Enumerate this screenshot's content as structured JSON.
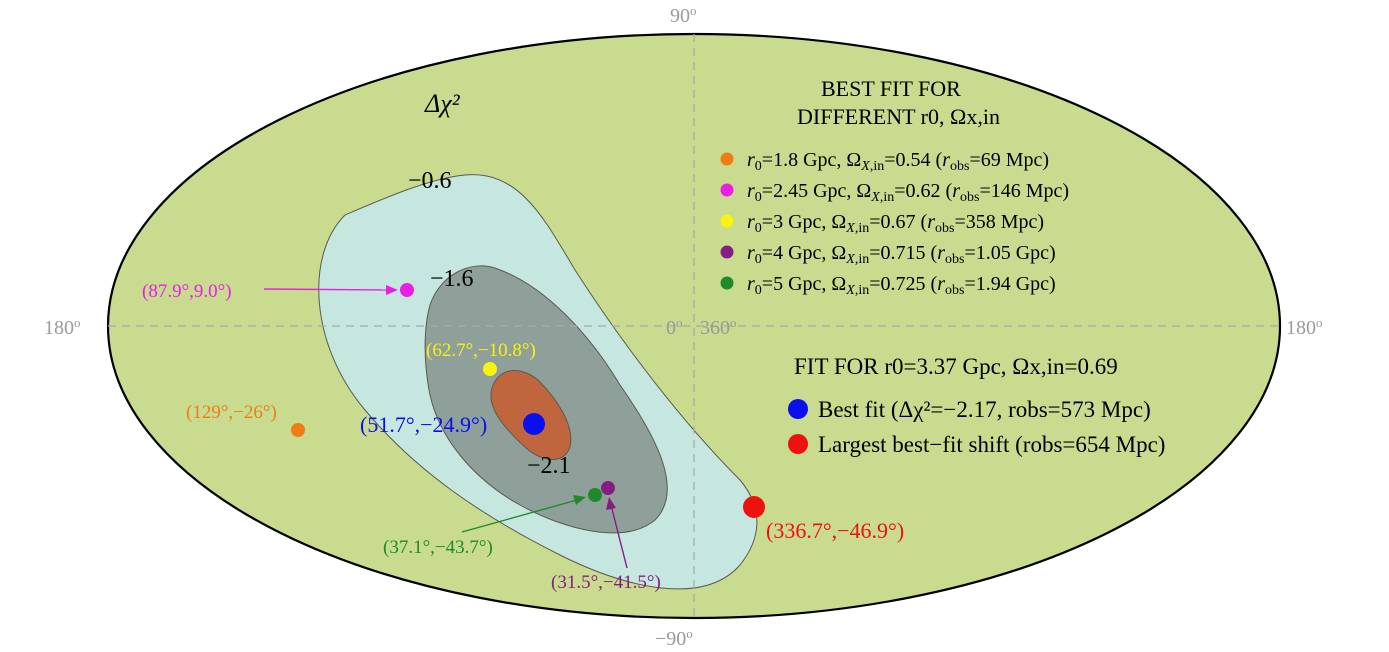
{
  "chart_data": {
    "type": "scatter",
    "projection": "mollweide",
    "title": "",
    "colorbar_label": "Δχ²",
    "axis_labels": {
      "top": "90",
      "bottom": "−90",
      "left": "180",
      "right": "180",
      "center_left": "0",
      "center_right": "360",
      "degree_mark": "o"
    },
    "contour_labels": [
      "−0.6",
      "−1.6",
      "−2.1"
    ],
    "colors": {
      "background": "#c8db8f",
      "contour_outer": "#c6e6e0",
      "contour_mid": "#8fa09a",
      "contour_inner": "#c0663e",
      "grid": "#aaaaaa"
    },
    "legend_top": {
      "title_line1": "BEST FIT FOR",
      "title_line2": "DIFFERENT r0, Ωx,in",
      "entries": [
        {
          "color": "#f07c14",
          "r0": "1.8 Gpc",
          "omega": "0.54",
          "robs": "69 Mpc"
        },
        {
          "color": "#ea1fe6",
          "r0": "2.45 Gpc",
          "omega": "0.62",
          "robs": "146 Mpc"
        },
        {
          "color": "#fbf210",
          "r0": "3 Gpc",
          "omega": "0.67",
          "robs": "358 Mpc"
        },
        {
          "color": "#861d85",
          "r0": "4 Gpc",
          "omega": "0.715",
          "robs": "1.05 Gpc"
        },
        {
          "color": "#1f8a2c",
          "r0": "5 Gpc",
          "omega": "0.725",
          "robs": "1.94 Gpc"
        }
      ]
    },
    "legend_bottom": {
      "title": "FIT FOR r0=3.37 Gpc, Ωx,in=0.69",
      "entries": [
        {
          "color": "#0a0ff0",
          "label": "Best fit (Δχ²=−2.17, robs=573 Mpc)"
        },
        {
          "color": "#ef1010",
          "label": "Largest best−fit shift (robs=654 Mpc)"
        }
      ]
    },
    "points": [
      {
        "label": "(87.9°,9.0°)",
        "lon": 87.9,
        "lat": 9.0,
        "color": "#ea1fe6",
        "size": "small"
      },
      {
        "label": "(62.7°,−10.8°)",
        "lon": 62.7,
        "lat": -10.8,
        "color": "#fbf210",
        "size": "small"
      },
      {
        "label": "(129°,−26°)",
        "lon": 129,
        "lat": -26,
        "color": "#f07c14",
        "size": "small"
      },
      {
        "label": "(51.7°,−24.9°)",
        "lon": 51.7,
        "lat": -24.9,
        "color": "#0a0ff0",
        "size": "large"
      },
      {
        "label": "(37.1°,−43.7°)",
        "lon": 37.1,
        "lat": -43.7,
        "color": "#1f8a2c",
        "size": "small"
      },
      {
        "label": "(31.5°,−41.5°)",
        "lon": 31.5,
        "lat": -41.5,
        "color": "#861d85",
        "size": "small"
      },
      {
        "label": "(336.7°,−46.9°)",
        "lon": 336.7,
        "lat": -46.9,
        "color": "#ef1010",
        "size": "large"
      }
    ]
  }
}
